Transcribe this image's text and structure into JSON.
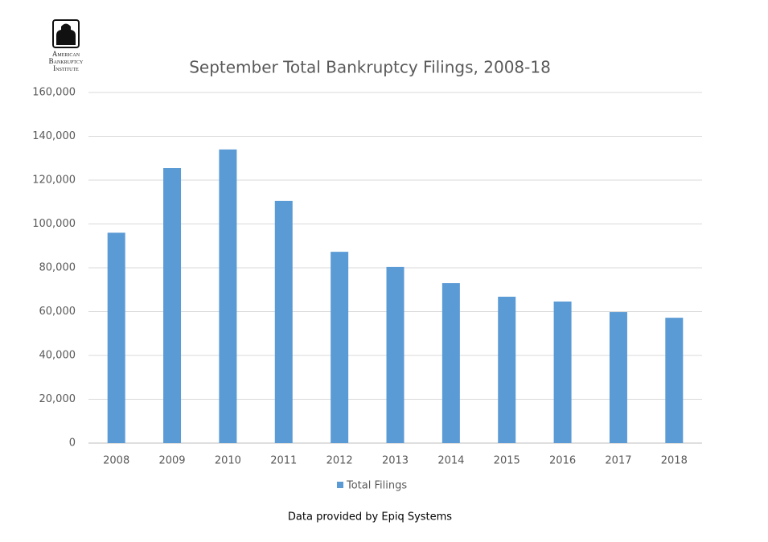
{
  "logo": [
    "American",
    "Bankruptcy",
    "Institute"
  ],
  "chart_data": {
    "type": "bar",
    "title": "September Total Bankruptcy Filings, 2008-18",
    "categories": [
      "2008",
      "2009",
      "2010",
      "2011",
      "2012",
      "2013",
      "2014",
      "2015",
      "2016",
      "2017",
      "2018"
    ],
    "series": [
      {
        "name": "Total Filings",
        "color": "#5b9bd5",
        "values": [
          96000,
          125500,
          134000,
          110500,
          87300,
          80400,
          73000,
          66800,
          64600,
          59800,
          57200
        ]
      }
    ],
    "ylim": [
      0,
      160000
    ],
    "yticks": [
      0,
      {
        "value": 20000,
        "label": "20,000"
      },
      {
        "value": 40000,
        "label": "40,000"
      },
      {
        "value": 60000,
        "label": "60,000"
      },
      {
        "value": 80000,
        "label": "80,000"
      },
      {
        "value": 100000,
        "label": "100,000"
      },
      {
        "value": 120000,
        "label": "120,000"
      },
      {
        "value": 140000,
        "label": "140,000"
      },
      {
        "value": 160000,
        "label": "160,000"
      }
    ],
    "grid": true,
    "legend": "bottom",
    "source": "Data provided by Epiq Systems"
  }
}
